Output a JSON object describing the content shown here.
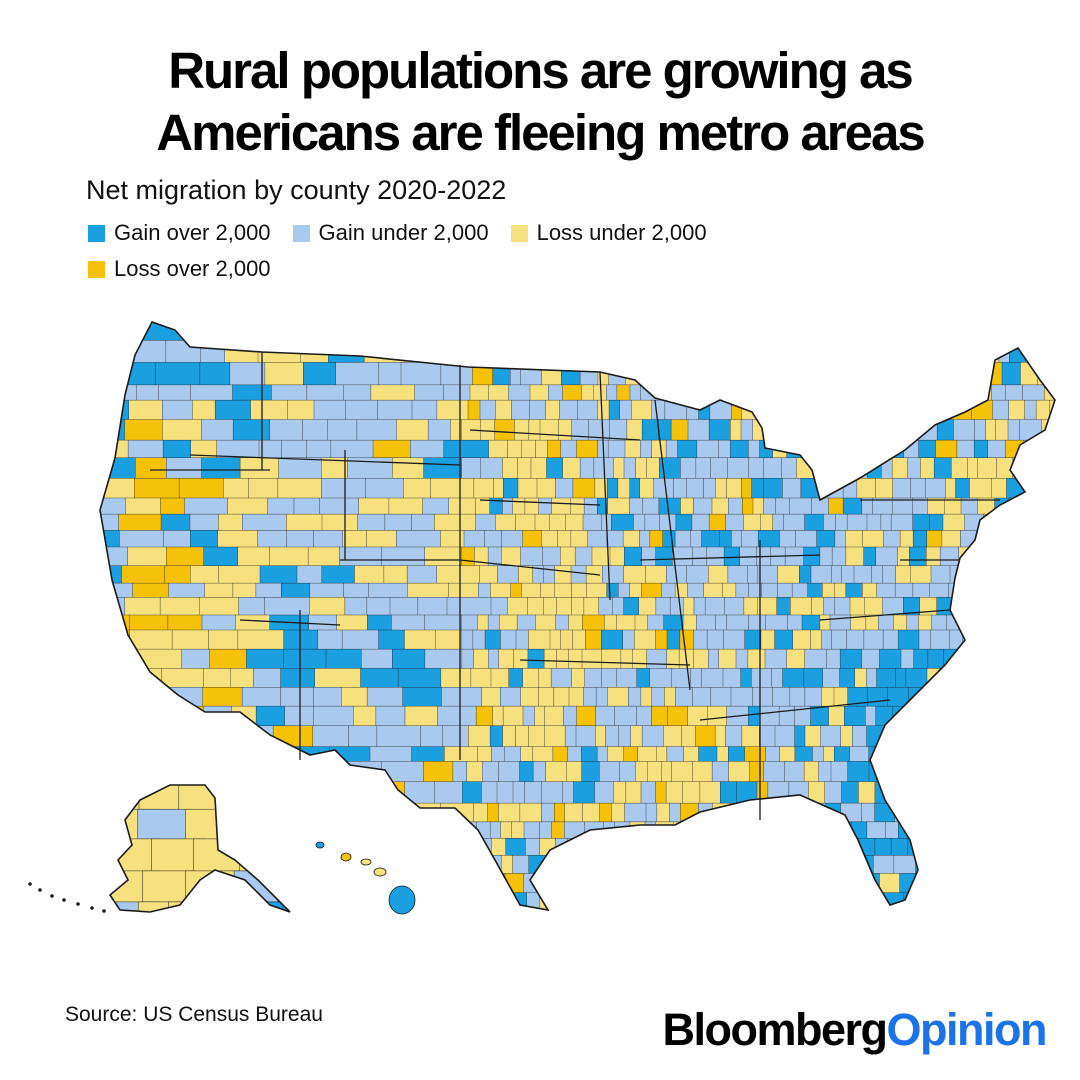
{
  "title_lines": [
    "Rural populations are growing as",
    "Americans are fleeing metro areas"
  ],
  "subtitle": "Net migration by county 2020-2022",
  "legend": [
    {
      "label": "Gain over 2,000",
      "color": "#1a9fe0"
    },
    {
      "label": "Gain under 2,000",
      "color": "#a9c9ee"
    },
    {
      "label": "Loss under 2,000",
      "color": "#f7e07e"
    },
    {
      "label": "Loss over 2,000",
      "color": "#f5c109"
    }
  ],
  "map": {
    "regions": [
      "Contiguous United States",
      "Alaska",
      "Hawaii"
    ],
    "border_color": "#1b1b1b"
  },
  "source": "Source: US Census Bureau",
  "brand": {
    "part1": "Bloomberg",
    "part2": "Opinion"
  }
}
